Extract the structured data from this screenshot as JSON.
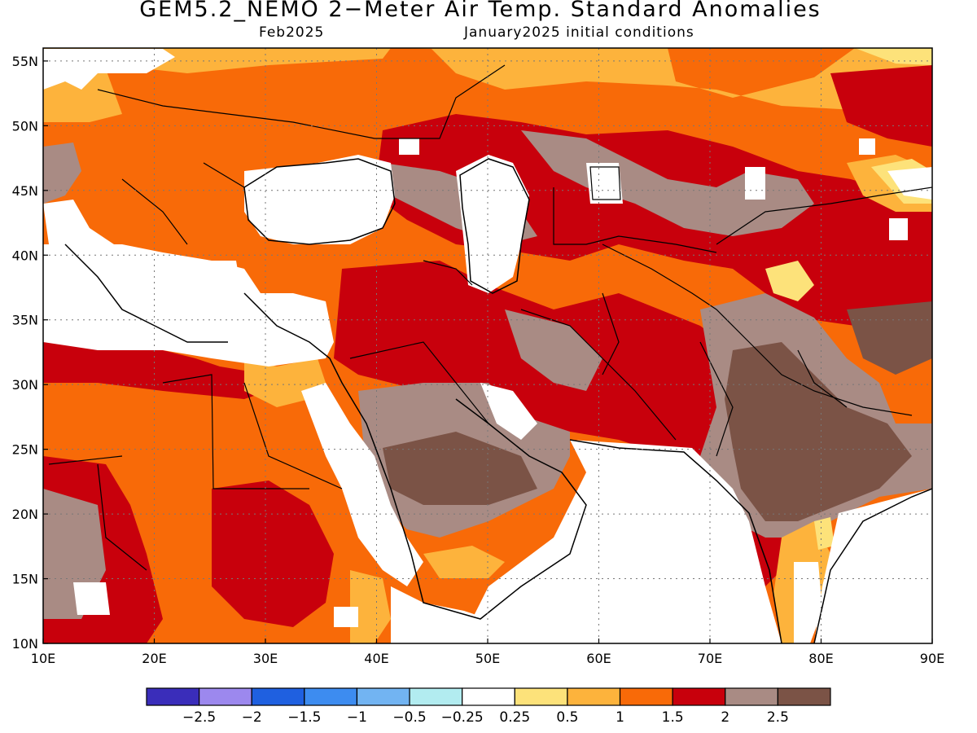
{
  "title": "GEM5.2_NEMO 2−Meter Air Temp. Standard Anomalies",
  "subtitle_left": "Feb2025",
  "subtitle_right": "January2025 initial conditions",
  "map": {
    "lon_range": [
      10,
      90
    ],
    "lat_range": [
      10,
      56
    ],
    "lon_ticks": [
      {
        "value": 10,
        "label": "10E"
      },
      {
        "value": 20,
        "label": "20E"
      },
      {
        "value": 30,
        "label": "30E"
      },
      {
        "value": 40,
        "label": "40E"
      },
      {
        "value": 50,
        "label": "50E"
      },
      {
        "value": 60,
        "label": "60E"
      },
      {
        "value": 70,
        "label": "70E"
      },
      {
        "value": 80,
        "label": "80E"
      },
      {
        "value": 90,
        "label": "90E"
      }
    ],
    "lat_ticks": [
      {
        "value": 10,
        "label": "10N"
      },
      {
        "value": 15,
        "label": "15N"
      },
      {
        "value": 20,
        "label": "20N"
      },
      {
        "value": 25,
        "label": "25N"
      },
      {
        "value": 30,
        "label": "30N"
      },
      {
        "value": 35,
        "label": "35N"
      },
      {
        "value": 40,
        "label": "40N"
      },
      {
        "value": 45,
        "label": "45N"
      },
      {
        "value": 50,
        "label": "50N"
      },
      {
        "value": 55,
        "label": "55N"
      }
    ],
    "gridlines": "dotted"
  },
  "colorbar": {
    "colors": [
      "#3a2dba",
      "#9c88ee",
      "#1f60e0",
      "#3d8cf0",
      "#72b4f2",
      "#b2ecf0",
      "#ffffff",
      "#fde27a",
      "#fdb33c",
      "#f86a08",
      "#c8000c",
      "#a98b84",
      "#7b5346"
    ],
    "labels": [
      "−2.5",
      "−2",
      "−1.5",
      "−1",
      "−0.5",
      "−0.25",
      "0.25",
      "0.5",
      "1",
      "1.5",
      "2",
      "2.5"
    ]
  }
}
